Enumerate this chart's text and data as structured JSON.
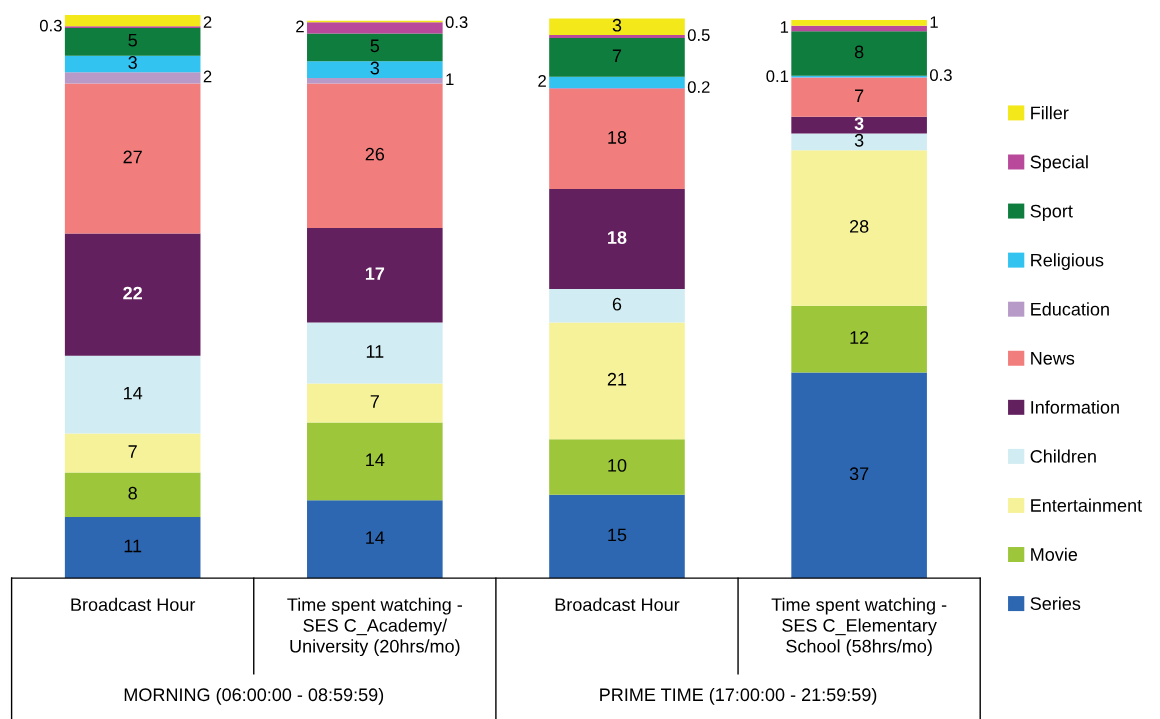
{
  "chart_data": {
    "type": "bar",
    "stacked": true,
    "data_labels": true,
    "legend": "right",
    "categories": [
      "Broadcast Hour",
      "Time spent watching -\nSES C_Academy/\nUniversity (20hrs/mo)",
      "Broadcast Hour",
      "Time spent watching -\nSES C_Elementary\nSchool (58hrs/mo)"
    ],
    "annotations": [
      "MORNING (06:00:00 - 08:59:59)",
      "PRIME TIME (17:00:00 - 21:59:59)"
    ],
    "series": [
      {
        "name": "Series",
        "color": "#2e67b1",
        "values": [
          11,
          14,
          15,
          37
        ]
      },
      {
        "name": "Movie",
        "color": "#9dc63b",
        "values": [
          8,
          14,
          10,
          12
        ]
      },
      {
        "name": "Entertainment",
        "color": "#f6f29a",
        "values": [
          7,
          7,
          21,
          28
        ]
      },
      {
        "name": "Children",
        "color": "#d1ecf2",
        "values": [
          14,
          11,
          6,
          3
        ]
      },
      {
        "name": "Information",
        "color": "#63205f",
        "values": [
          22,
          17,
          18,
          3
        ]
      },
      {
        "name": "News",
        "color": "#f27d7d",
        "values": [
          27,
          26,
          18,
          7
        ]
      },
      {
        "name": "Education",
        "color": "#b79ac8",
        "values": [
          2,
          1,
          0.2,
          0.1
        ]
      },
      {
        "name": "Religious",
        "color": "#33c3f0",
        "values": [
          3,
          3,
          2,
          0.3
        ]
      },
      {
        "name": "Sport",
        "color": "#0f7d3d",
        "values": [
          5,
          5,
          7,
          8
        ]
      },
      {
        "name": "Special",
        "color": "#b9499b",
        "values": [
          0.3,
          2,
          0.5,
          1
        ]
      },
      {
        "name": "Filler",
        "color": "#f2e81a",
        "values": [
          2,
          0.3,
          3,
          1
        ]
      }
    ]
  }
}
